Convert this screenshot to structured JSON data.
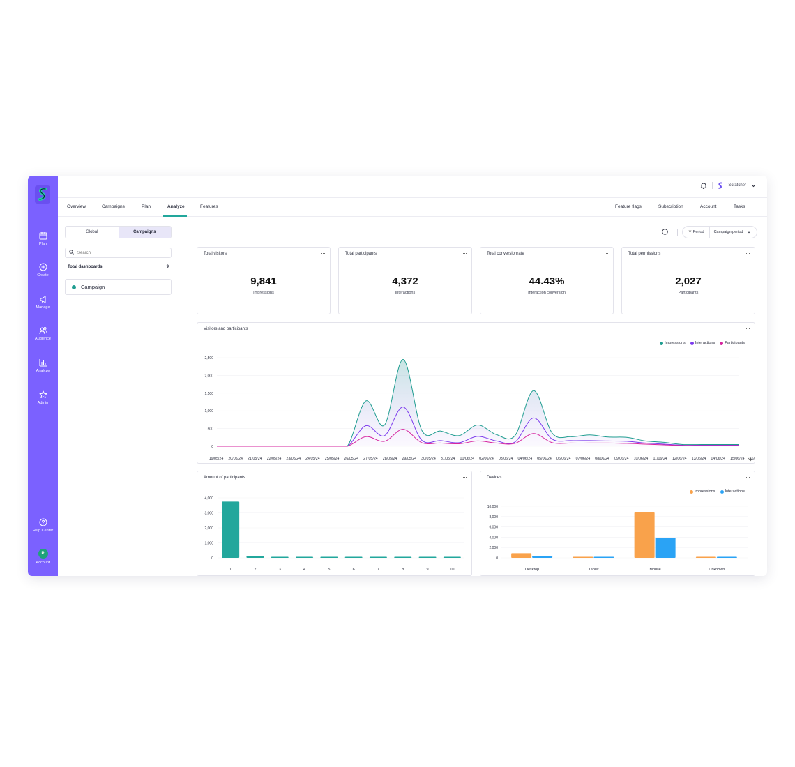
{
  "rail": {
    "items": [
      {
        "label": "Plan",
        "icon": "calendar-icon"
      },
      {
        "label": "Create",
        "icon": "plus-circle-icon"
      },
      {
        "label": "Manage",
        "icon": "megaphone-icon"
      },
      {
        "label": "Audience",
        "icon": "users-icon"
      },
      {
        "label": "Analyze",
        "icon": "bar-chart-icon"
      },
      {
        "label": "Admin",
        "icon": "star-icon"
      }
    ],
    "help_label": "Help Center",
    "account_label": "Account",
    "account_initial": "P"
  },
  "topbar": {
    "user_name": "Scratcher"
  },
  "nav": {
    "left": [
      "Overview",
      "Campaigns",
      "Plan",
      "Analyze",
      "Features"
    ],
    "active": "Analyze",
    "right": [
      "Feature flags",
      "Subscription",
      "Account",
      "Tasks"
    ]
  },
  "left_panel": {
    "tabs": [
      "Global",
      "Campaigns"
    ],
    "active_tab": "Campaigns",
    "search_placeholder": "Search",
    "total_label": "Total dashboards",
    "total_count": "9",
    "campaign_item": "Campaign"
  },
  "period": {
    "label": "Period",
    "value": "Campaign period"
  },
  "kpis": [
    {
      "title": "Total visitors",
      "value": "9,841",
      "subtitle": "Impressions"
    },
    {
      "title": "Total participants",
      "value": "4,372",
      "subtitle": "Interactions"
    },
    {
      "title": "Total conversionrate",
      "value": "44.43%",
      "subtitle": "Interaction conversion"
    },
    {
      "title": "Total permissions",
      "value": "2,027",
      "subtitle": "Participants"
    }
  ],
  "colors": {
    "accent": "#7b61ff",
    "teal": "#1f9d90",
    "purple": "#7c3aed",
    "pink": "#d6249f",
    "orange": "#f9a24b",
    "blue": "#2aa3f5",
    "bar_teal": "#22a79c"
  },
  "chart_data": [
    {
      "type": "area",
      "title": "Visitors and participants",
      "x": [
        "19/05/24",
        "20/05/24",
        "21/05/24",
        "22/05/24",
        "23/05/24",
        "24/05/24",
        "25/05/24",
        "26/05/24",
        "27/05/24",
        "28/05/24",
        "29/05/24",
        "30/05/24",
        "31/05/24",
        "01/06/24",
        "02/06/24",
        "03/06/24",
        "04/06/24",
        "05/06/24",
        "06/06/24",
        "07/06/24",
        "08/06/24",
        "09/06/24",
        "10/06/24",
        "11/06/24",
        "12/06/24",
        "13/06/24",
        "14/06/24",
        "15/06/24",
        "16/06/24"
      ],
      "series": [
        {
          "name": "Impressions",
          "values": [
            0,
            0,
            0,
            0,
            0,
            0,
            0,
            0,
            1280,
            600,
            2450,
            450,
            430,
            300,
            600,
            330,
            300,
            1570,
            370,
            270,
            320,
            260,
            250,
            150,
            110,
            50,
            50,
            50,
            50
          ]
        },
        {
          "name": "Interactions",
          "values": [
            0,
            0,
            0,
            0,
            0,
            0,
            0,
            0,
            580,
            300,
            1110,
            170,
            160,
            100,
            280,
            150,
            120,
            800,
            200,
            160,
            160,
            150,
            140,
            90,
            60,
            30,
            30,
            30,
            30
          ]
        },
        {
          "name": "Participants",
          "values": [
            0,
            0,
            0,
            0,
            0,
            0,
            0,
            0,
            270,
            140,
            480,
            100,
            90,
            70,
            150,
            90,
            80,
            360,
            100,
            90,
            90,
            90,
            80,
            60,
            40,
            20,
            20,
            20,
            20
          ]
        }
      ],
      "ylim": [
        0,
        2500
      ],
      "yticks": [
        "0",
        "500",
        "1,000",
        "1,500",
        "2,000",
        "2,500"
      ],
      "legend": "top-right"
    },
    {
      "type": "bar",
      "title": "Amount of participants",
      "categories": [
        "1",
        "2",
        "3",
        "4",
        "5",
        "6",
        "7",
        "8",
        "9",
        "10"
      ],
      "values": [
        3750,
        120,
        60,
        50,
        45,
        40,
        40,
        35,
        35,
        35
      ],
      "ylim": [
        0,
        4000
      ],
      "yticks": [
        "0",
        "1,000",
        "2,000",
        "3,000",
        "4,000"
      ]
    },
    {
      "type": "bar",
      "title": "Devices",
      "categories": [
        "Desktop",
        "Tablet",
        "Mobile",
        "Unknown"
      ],
      "series": [
        {
          "name": "Impressions",
          "values": [
            900,
            100,
            8800,
            100
          ]
        },
        {
          "name": "Interactions",
          "values": [
            400,
            80,
            3900,
            80
          ]
        }
      ],
      "ylim": [
        0,
        10000
      ],
      "yticks": [
        "0",
        "2,000",
        "4,000",
        "6,000",
        "8,000",
        "10,000"
      ],
      "legend": "top-right"
    }
  ]
}
